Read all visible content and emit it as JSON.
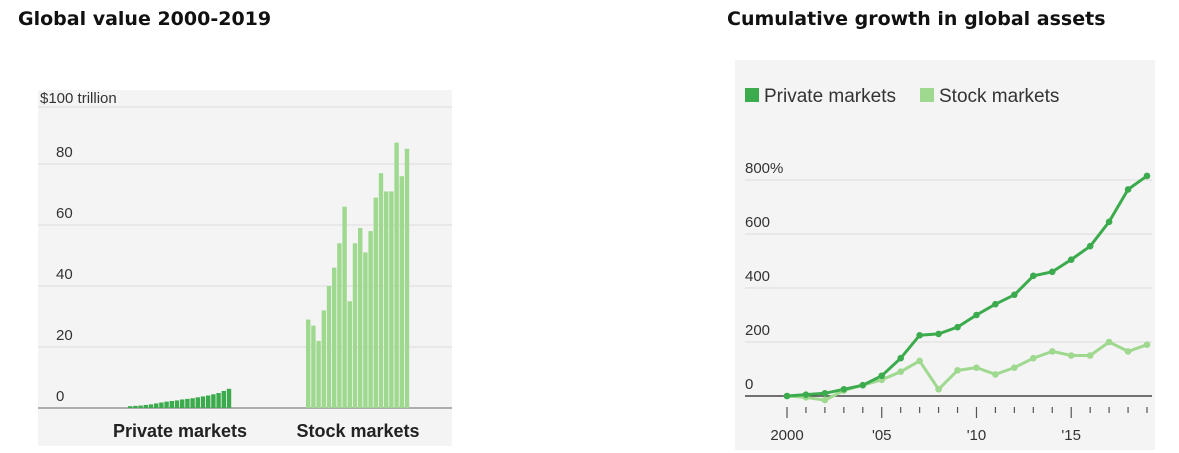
{
  "left_title": "Global value 2000-2019",
  "right_title": "Cumulative growth in global assets",
  "chart_data": [
    {
      "type": "bar",
      "title": "Global value 2000-2019",
      "unit_label": "$100 trillion",
      "ylim": [
        0,
        100
      ],
      "y_ticks": [
        "0",
        "20",
        "40",
        "60",
        "80"
      ],
      "grid": true,
      "groups": [
        "Private markets",
        "Stock markets"
      ],
      "years": [
        2000,
        2001,
        2002,
        2003,
        2004,
        2005,
        2006,
        2007,
        2008,
        2009,
        2010,
        2011,
        2012,
        2013,
        2014,
        2015,
        2016,
        2017,
        2018,
        2019
      ],
      "series": [
        {
          "name": "Private markets",
          "color": "#3cab4e",
          "values": [
            0.6,
            0.7,
            0.8,
            1.0,
            1.2,
            1.5,
            1.8,
            2.1,
            2.3,
            2.5,
            2.8,
            3.0,
            3.2,
            3.5,
            3.8,
            4.1,
            4.5,
            4.9,
            5.6,
            6.3
          ]
        },
        {
          "name": "Stock markets",
          "color": "#9fd88f",
          "values": [
            29,
            27,
            22,
            32,
            40,
            46,
            54,
            66,
            35,
            54,
            59,
            51,
            58,
            69,
            77,
            71,
            71,
            87,
            76,
            85
          ]
        }
      ]
    },
    {
      "type": "line",
      "title": "Cumulative growth in global assets",
      "legend": "top-left",
      "legend_entries": [
        "Private markets",
        "Stock markets"
      ],
      "ylim": [
        -50,
        850
      ],
      "y_ticks": [
        "0",
        "200",
        "400",
        "600",
        "800%"
      ],
      "x_tick_labels": [
        "2000",
        "'05",
        "'10",
        "'15"
      ],
      "x": [
        2000,
        2001,
        2002,
        2003,
        2004,
        2005,
        2006,
        2007,
        2008,
        2009,
        2010,
        2011,
        2012,
        2013,
        2014,
        2015,
        2016,
        2017,
        2018,
        2019
      ],
      "grid": true,
      "series": [
        {
          "name": "Private markets",
          "color": "#3cab4e",
          "values": [
            0,
            5,
            10,
            25,
            40,
            75,
            140,
            225,
            230,
            255,
            300,
            340,
            375,
            445,
            460,
            505,
            555,
            645,
            765,
            815
          ]
        },
        {
          "name": "Stock markets",
          "color": "#9fd88f",
          "values": [
            0,
            -5,
            -15,
            20,
            40,
            60,
            90,
            130,
            25,
            95,
            105,
            80,
            105,
            140,
            165,
            150,
            150,
            200,
            165,
            190
          ]
        }
      ]
    }
  ]
}
